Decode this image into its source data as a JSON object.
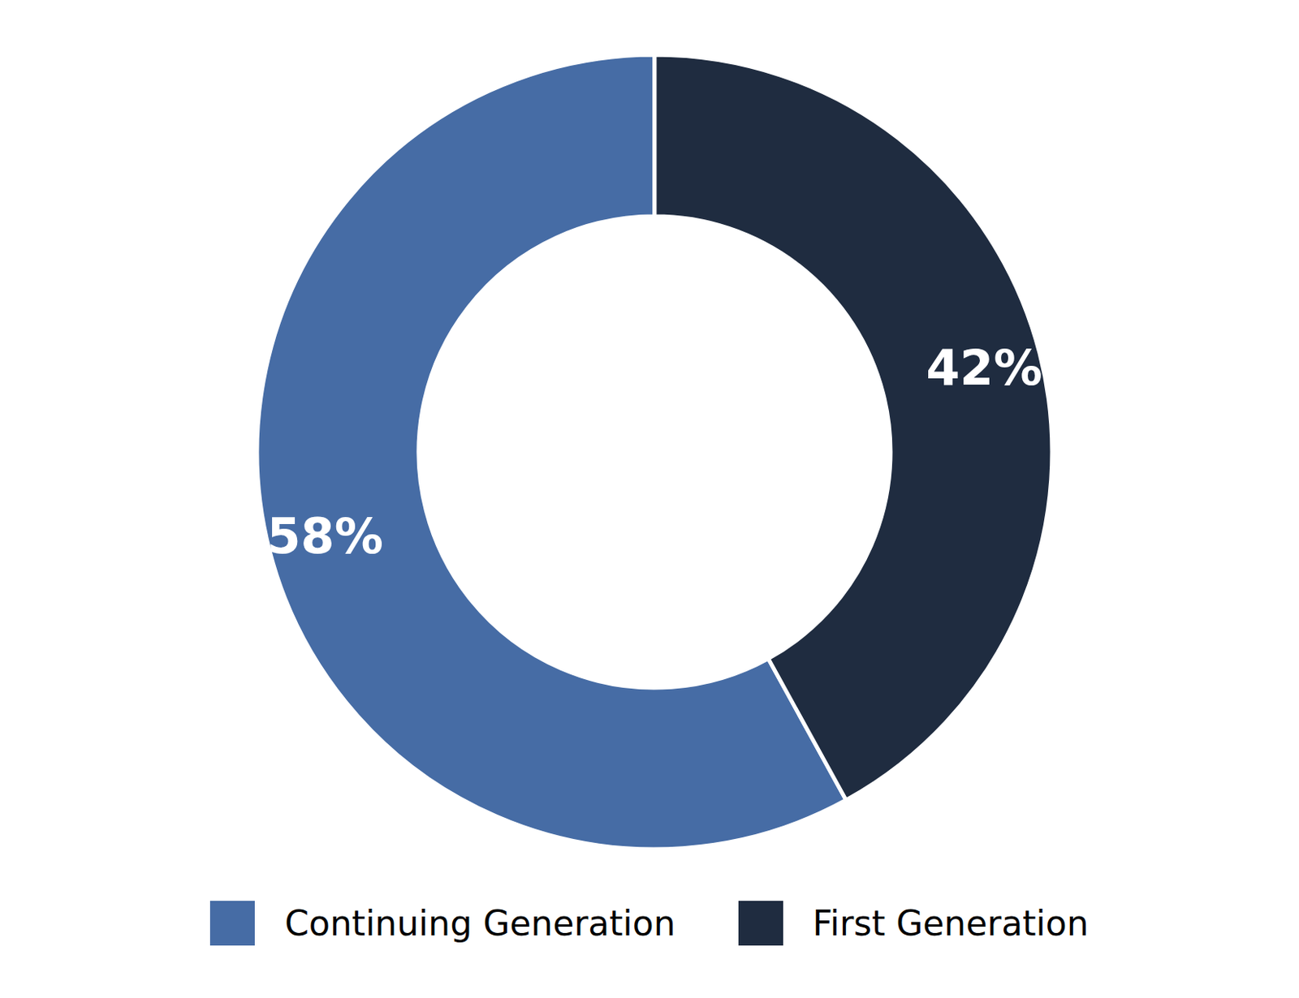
{
  "chart_data": {
    "type": "donut",
    "categories": [
      "Continuing Generation",
      "First Generation"
    ],
    "values": [
      58,
      42
    ],
    "value_labels": [
      "58%",
      "42%"
    ],
    "colors": [
      "#466ca5",
      "#1f2c40"
    ],
    "data_labels": true,
    "legend": "bottom"
  }
}
